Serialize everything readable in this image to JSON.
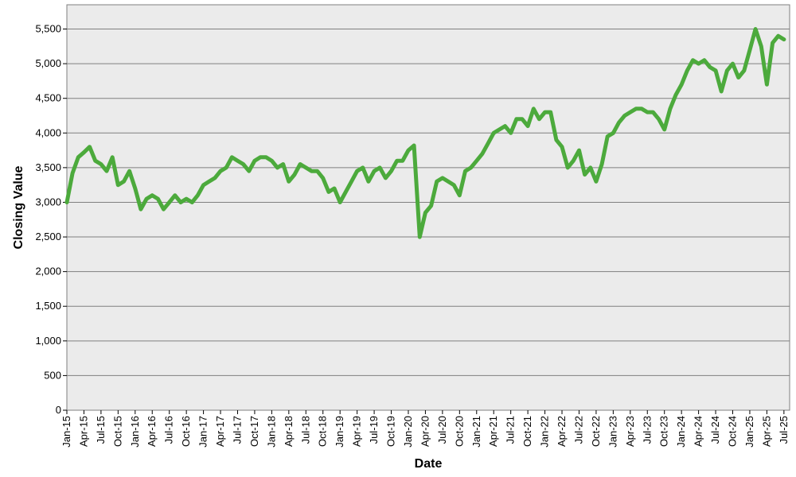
{
  "chart_data": {
    "type": "line",
    "xlabel": "Date",
    "ylabel": "Closing Value",
    "ylim": [
      0,
      5850
    ],
    "grid": true,
    "legend": "none",
    "colors": {
      "line": "#4caa3c",
      "plot_background": "#ebebeb",
      "gridline": "#7f7f7f"
    },
    "x_ticks": [
      "Jan-15",
      "Apr-15",
      "Jul-15",
      "Oct-15",
      "Jan-16",
      "Apr-16",
      "Jul-16",
      "Oct-16",
      "Jan-17",
      "Apr-17",
      "Jul-17",
      "Oct-17",
      "Jan-18",
      "Apr-18",
      "Jul-18",
      "Oct-18",
      "Jan-19",
      "Apr-19",
      "Jul-19",
      "Oct-19",
      "Jan-20",
      "Apr-20",
      "Jul-20",
      "Oct-20",
      "Jan-21",
      "Apr-21",
      "Jul-21",
      "Oct-21",
      "Jan-22",
      "Apr-22",
      "Jul-22",
      "Oct-22",
      "Jan-23",
      "Apr-23",
      "Jul-23",
      "Oct-23",
      "Jan-24",
      "Apr-24",
      "Jul-24",
      "Oct-24",
      "Jan-25",
      "Apr-25",
      "Jul-25"
    ],
    "y_ticks": [
      "0",
      "500",
      "1,000",
      "1,500",
      "2,000",
      "2,500",
      "3,000",
      "3,500",
      "4,000",
      "4,500",
      "5,000",
      "5,500"
    ],
    "y_tick_values": [
      0,
      500,
      1000,
      1500,
      2000,
      2500,
      3000,
      3500,
      4000,
      4500,
      5000,
      5500
    ],
    "series": [
      {
        "x": [
          "2015-01",
          "2015-02",
          "2015-03",
          "2015-04",
          "2015-05",
          "2015-06",
          "2015-07",
          "2015-08",
          "2015-09",
          "2015-10",
          "2015-11",
          "2015-12",
          "2016-01",
          "2016-02",
          "2016-03",
          "2016-04",
          "2016-05",
          "2016-06",
          "2016-07",
          "2016-08",
          "2016-09",
          "2016-10",
          "2016-11",
          "2016-12",
          "2017-01",
          "2017-02",
          "2017-03",
          "2017-04",
          "2017-05",
          "2017-06",
          "2017-07",
          "2017-08",
          "2017-09",
          "2017-10",
          "2017-11",
          "2017-12",
          "2018-01",
          "2018-02",
          "2018-03",
          "2018-04",
          "2018-05",
          "2018-06",
          "2018-07",
          "2018-08",
          "2018-09",
          "2018-10",
          "2018-11",
          "2018-12",
          "2019-01",
          "2019-02",
          "2019-03",
          "2019-04",
          "2019-05",
          "2019-06",
          "2019-07",
          "2019-08",
          "2019-09",
          "2019-10",
          "2019-11",
          "2019-12",
          "2020-01",
          "2020-02",
          "2020-03",
          "2020-04",
          "2020-05",
          "2020-06",
          "2020-07",
          "2020-08",
          "2020-09",
          "2020-10",
          "2020-11",
          "2020-12",
          "2021-01",
          "2021-02",
          "2021-03",
          "2021-04",
          "2021-05",
          "2021-06",
          "2021-07",
          "2021-08",
          "2021-09",
          "2021-10",
          "2021-11",
          "2021-12",
          "2022-01",
          "2022-02",
          "2022-03",
          "2022-04",
          "2022-05",
          "2022-06",
          "2022-07",
          "2022-08",
          "2022-09",
          "2022-10",
          "2022-11",
          "2022-12",
          "2023-01",
          "2023-02",
          "2023-03",
          "2023-04",
          "2023-05",
          "2023-06",
          "2023-07",
          "2023-08",
          "2023-09",
          "2023-10",
          "2023-11",
          "2023-12",
          "2024-01",
          "2024-02",
          "2024-03",
          "2024-04",
          "2024-05",
          "2024-06",
          "2024-07",
          "2024-08",
          "2024-09",
          "2024-10",
          "2024-11",
          "2024-12",
          "2025-01",
          "2025-02",
          "2025-03",
          "2025-04",
          "2025-05",
          "2025-06",
          "2025-07"
        ],
        "y": [
          3000,
          3420,
          3650,
          3720,
          3800,
          3600,
          3550,
          3450,
          3650,
          3250,
          3300,
          3450,
          3200,
          2900,
          3050,
          3100,
          3050,
          2900,
          3000,
          3100,
          3000,
          3050,
          3000,
          3100,
          3250,
          3300,
          3350,
          3450,
          3500,
          3650,
          3600,
          3550,
          3450,
          3600,
          3650,
          3650,
          3600,
          3500,
          3550,
          3300,
          3400,
          3550,
          3500,
          3450,
          3450,
          3350,
          3150,
          3200,
          3000,
          3150,
          3300,
          3450,
          3500,
          3300,
          3450,
          3500,
          3350,
          3450,
          3600,
          3600,
          3750,
          3820,
          2500,
          2850,
          2950,
          3300,
          3350,
          3300,
          3250,
          3100,
          3450,
          3500,
          3600,
          3700,
          3850,
          4000,
          4050,
          4100,
          4000,
          4200,
          4200,
          4100,
          4350,
          4200,
          4300,
          4300,
          3900,
          3800,
          3500,
          3600,
          3750,
          3400,
          3500,
          3300,
          3550,
          3950,
          4000,
          4150,
          4250,
          4300,
          4350,
          4350,
          4300,
          4300,
          4200,
          4050,
          4350,
          4550,
          4700,
          4900,
          5050,
          5000,
          5050,
          4950,
          4900,
          4600,
          4900,
          5000,
          4800,
          4900,
          5200,
          5500,
          5250,
          4700,
          5300,
          5400,
          5350
        ]
      }
    ]
  }
}
